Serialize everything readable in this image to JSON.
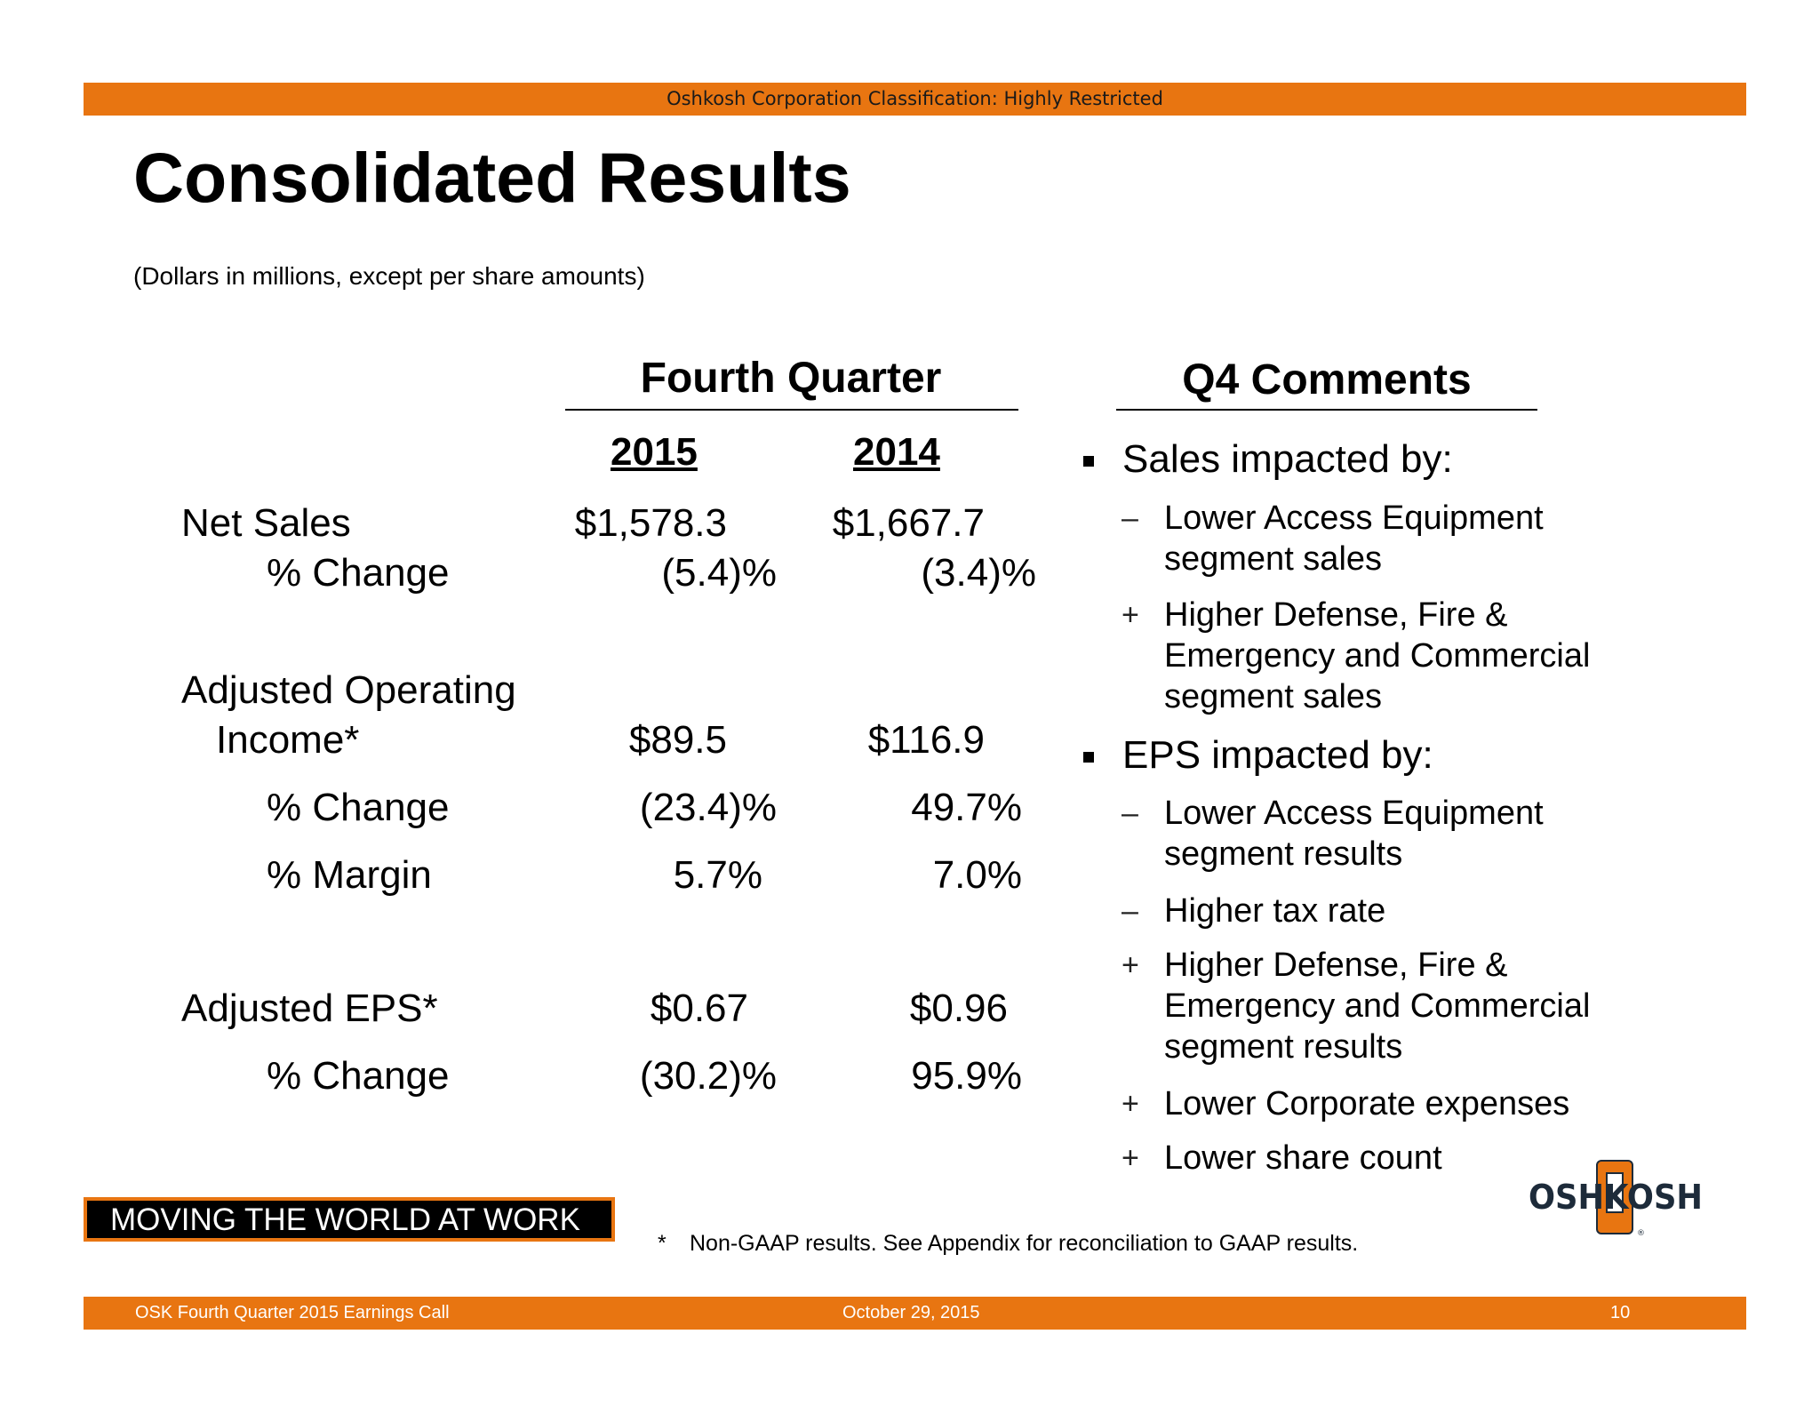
{
  "header": {
    "classification": "Oshkosh Corporation Classification: Highly Restricted"
  },
  "slide": {
    "title": "Consolidated Results",
    "subtitle": "(Dollars in millions, except per share amounts)"
  },
  "table": {
    "heading": "Fourth Quarter",
    "years": [
      "2015",
      "2014"
    ],
    "rows": {
      "net_sales": {
        "label": "Net Sales",
        "v2015": "$1,578.3",
        "v2014": "$1,667.7"
      },
      "net_sales_change": {
        "label": "% Change",
        "v2015": "(5.4)%",
        "v2014": "(3.4)%"
      },
      "adj_op_income": {
        "label1": "Adjusted Operating",
        "label2": "Income*",
        "v2015": "$89.5",
        "v2014": "$116.9"
      },
      "adj_op_change": {
        "label": "% Change",
        "v2015": "(23.4)%",
        "v2014": "49.7%"
      },
      "adj_op_margin": {
        "label": "% Margin",
        "v2015": "5.7%",
        "v2014": "7.0%"
      },
      "adj_eps": {
        "label": "Adjusted EPS*",
        "v2015": "$0.67",
        "v2014": "$0.96"
      },
      "adj_eps_change": {
        "label": "% Change",
        "v2015": "(30.2)%",
        "v2014": "95.9%"
      }
    }
  },
  "comments": {
    "heading": "Q4 Comments",
    "sales": {
      "label": "Sales impacted by:",
      "items": [
        {
          "mark": "–",
          "lines": [
            "Lower Access Equipment",
            "segment sales"
          ]
        },
        {
          "mark": "+",
          "lines": [
            "Higher Defense, Fire &",
            "Emergency and Commercial",
            "segment sales"
          ]
        }
      ]
    },
    "eps": {
      "label": "EPS impacted by:",
      "items": [
        {
          "mark": "–",
          "lines": [
            "Lower Access Equipment",
            "segment results"
          ]
        },
        {
          "mark": "–",
          "lines": [
            "Higher tax rate"
          ]
        },
        {
          "mark": "+",
          "lines": [
            "Higher Defense, Fire &",
            "Emergency and Commercial",
            "segment results"
          ]
        },
        {
          "mark": "+",
          "lines": [
            "Lower Corporate expenses"
          ]
        },
        {
          "mark": "+",
          "lines": [
            "Lower share count"
          ]
        }
      ]
    }
  },
  "tagline": "MOVING THE WORLD AT WORK",
  "footnote": {
    "star": "*",
    "text": "Non-GAAP results.  See Appendix for reconciliation to GAAP results."
  },
  "logo": {
    "text": "OSHKOSH",
    "mark": "®"
  },
  "footer": {
    "left": "OSK Fourth Quarter 2015 Earnings Call",
    "center": "October 29, 2015",
    "page": "10"
  },
  "colors": {
    "accent": "#E87511",
    "text": "#000000",
    "logo": "#1d2b3a"
  }
}
